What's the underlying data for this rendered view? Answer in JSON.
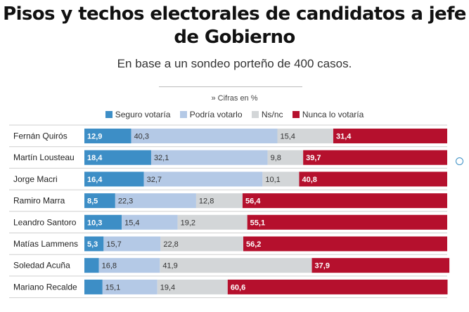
{
  "title": "Pisos y techos electorales de candidatos a jefe de Gobierno",
  "subtitle": "En base a un sondeo porteño de 400 casos.",
  "note": "» Cifras en %",
  "colors": {
    "seguro": "#3d8ec6",
    "podria": "#b4c9e6",
    "nsnc": "#d3d6d8",
    "nunca": "#b5102d"
  },
  "chart_data": {
    "type": "bar",
    "orientation": "horizontal",
    "stacked": true,
    "categories": [
      "Fernán Quirós",
      "Martín Lousteau",
      "Jorge Macri",
      "Ramiro Marra",
      "Leandro Santoro",
      "Matías Lammens",
      "Soledad Acuña",
      "Mariano Recalde"
    ],
    "series": [
      {
        "name": "Seguro votaría",
        "values": [
          12.9,
          18.4,
          16.4,
          8.5,
          10.3,
          5.3,
          4.0,
          5.0
        ],
        "labels": [
          "12,9",
          "18,4",
          "16,4",
          "8,5",
          "10,3",
          "5,3",
          "",
          ""
        ]
      },
      {
        "name": "Podría votarlo",
        "values": [
          40.3,
          32.1,
          32.7,
          22.3,
          15.4,
          15.7,
          16.8,
          15.1
        ],
        "labels": [
          "40,3",
          "32,1",
          "32,7",
          "22,3",
          "15,4",
          "15,7",
          "16,8",
          "15,1"
        ]
      },
      {
        "name": "Ns/nc",
        "values": [
          15.4,
          9.8,
          10.1,
          12.8,
          19.2,
          22.8,
          41.9,
          19.4
        ],
        "labels": [
          "15,4",
          "9,8",
          "10,1",
          "12,8",
          "19,2",
          "22,8",
          "41,9",
          "19,4"
        ]
      },
      {
        "name": "Nunca lo votaría",
        "values": [
          31.4,
          39.7,
          40.8,
          56.4,
          55.1,
          56.2,
          37.9,
          60.6
        ],
        "labels": [
          "31,4",
          "39,7",
          "40,8",
          "56,4",
          "55,1",
          "56,2",
          "37,9",
          "60,6"
        ]
      }
    ],
    "xlim": [
      0,
      100
    ],
    "legend_position": "top"
  }
}
